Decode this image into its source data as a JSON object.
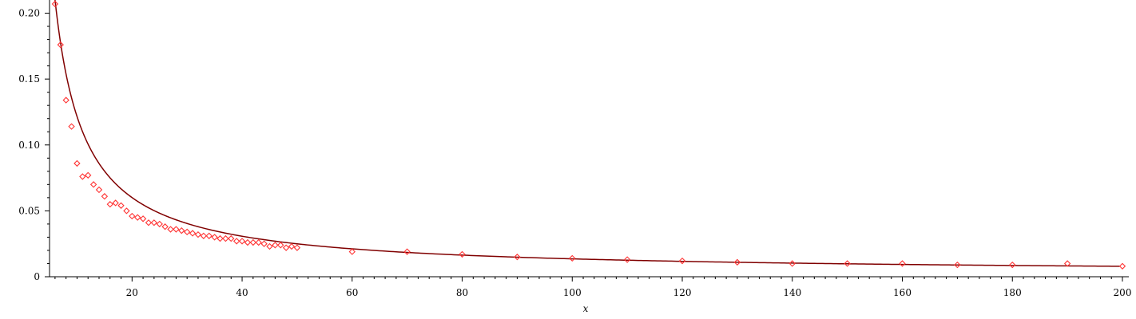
{
  "chart_data": {
    "type": "scatter",
    "xlabel": "x",
    "ylabel": "",
    "xlim": [
      5,
      200
    ],
    "ylim": [
      0,
      0.21
    ],
    "grid": false,
    "x_ticks": [
      20,
      40,
      60,
      80,
      100,
      120,
      140,
      160,
      180,
      200
    ],
    "x_tick_labels": [
      "20",
      "40",
      "60",
      "80",
      "100",
      "120",
      "140",
      "160",
      "180",
      "200"
    ],
    "y_ticks": [
      0,
      0.05,
      0.1,
      0.15,
      0.2
    ],
    "y_tick_labels": [
      "0",
      "0.05",
      "0.10",
      "0.15",
      "0.20"
    ],
    "colors": {
      "points": "#ff3333",
      "curve": "#800000"
    },
    "series": [
      {
        "type": "scatter",
        "marker": "diamond",
        "points": [
          [
            6,
            0.207
          ],
          [
            7,
            0.176
          ],
          [
            8,
            0.134
          ],
          [
            9,
            0.114
          ],
          [
            10,
            0.086
          ],
          [
            11,
            0.076
          ],
          [
            12,
            0.077
          ],
          [
            13,
            0.07
          ],
          [
            14,
            0.066
          ],
          [
            15,
            0.061
          ],
          [
            16,
            0.055
          ],
          [
            17,
            0.056
          ],
          [
            18,
            0.054
          ],
          [
            19,
            0.05
          ],
          [
            20,
            0.046
          ],
          [
            21,
            0.045
          ],
          [
            22,
            0.044
          ],
          [
            23,
            0.041
          ],
          [
            24,
            0.041
          ],
          [
            25,
            0.04
          ],
          [
            26,
            0.038
          ],
          [
            27,
            0.036
          ],
          [
            28,
            0.036
          ],
          [
            29,
            0.035
          ],
          [
            30,
            0.034
          ],
          [
            31,
            0.033
          ],
          [
            32,
            0.032
          ],
          [
            33,
            0.031
          ],
          [
            34,
            0.031
          ],
          [
            35,
            0.03
          ],
          [
            36,
            0.029
          ],
          [
            37,
            0.029
          ],
          [
            38,
            0.029
          ],
          [
            39,
            0.027
          ],
          [
            40,
            0.027
          ],
          [
            41,
            0.026
          ],
          [
            42,
            0.026
          ],
          [
            43,
            0.026
          ],
          [
            44,
            0.025
          ],
          [
            45,
            0.023
          ],
          [
            46,
            0.024
          ],
          [
            47,
            0.024
          ],
          [
            48,
            0.022
          ],
          [
            49,
            0.023
          ],
          [
            50,
            0.022
          ],
          [
            60,
            0.019
          ],
          [
            70,
            0.019
          ],
          [
            80,
            0.017
          ],
          [
            90,
            0.015
          ],
          [
            100,
            0.014
          ],
          [
            110,
            0.013
          ],
          [
            120,
            0.012
          ],
          [
            130,
            0.011
          ],
          [
            140,
            0.01
          ],
          [
            150,
            0.01
          ],
          [
            160,
            0.01
          ],
          [
            170,
            0.009
          ],
          [
            180,
            0.009
          ],
          [
            190,
            0.01
          ],
          [
            200,
            0.008
          ]
        ]
      },
      {
        "type": "line",
        "function": "a / (x + b) + c",
        "params": {
          "a": 1.12,
          "b": -0.61,
          "c": 0.0023
        }
      }
    ]
  }
}
